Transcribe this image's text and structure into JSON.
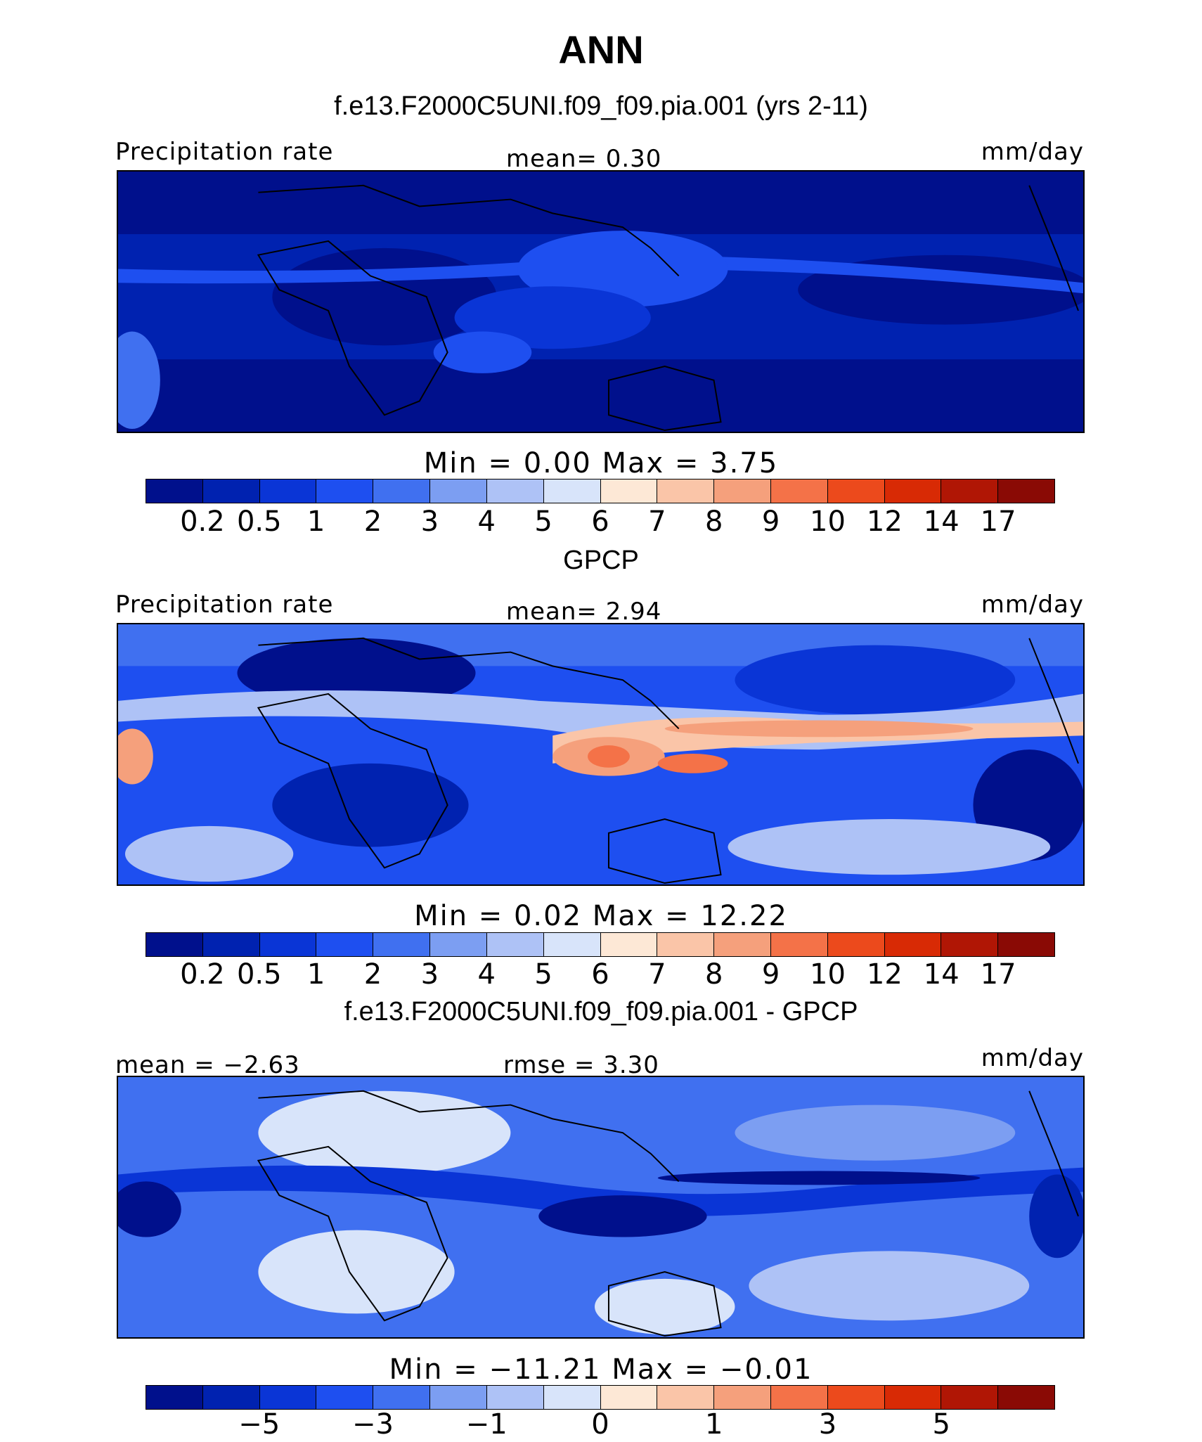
{
  "title": "ANN",
  "colors": [
    "#00108c",
    "#0022b0",
    "#0a35d6",
    "#1e4ff0",
    "#4070f0",
    "#7c9ef2",
    "#aec2f6",
    "#d8e4fa",
    "#fde8d6",
    "#fac5a8",
    "#f5a07c",
    "#f47248",
    "#ec4a1c",
    "#d82a05",
    "#b01605",
    "#8a0a05"
  ],
  "panels": [
    {
      "case_title": "f.e13.F2000C5UNI.f09_f09.pia.001 (yrs 2-11)",
      "left_label": "Precipitation rate",
      "center_label": "mean=   0.30",
      "right_label": "mm/day",
      "minmax": "Min =    0.00  Max =    3.75",
      "ticks": [
        "0.2",
        "0.5",
        "1",
        "2",
        "3",
        "4",
        "5",
        "6",
        "7",
        "8",
        "9",
        "10",
        "12",
        "14",
        "17"
      ],
      "field": "model"
    },
    {
      "case_title": "GPCP",
      "left_label": "Precipitation rate",
      "center_label": "mean=   2.94",
      "right_label": "mm/day",
      "minmax": "Min =    0.02  Max =   12.22",
      "ticks": [
        "0.2",
        "0.5",
        "1",
        "2",
        "3",
        "4",
        "5",
        "6",
        "7",
        "8",
        "9",
        "10",
        "12",
        "14",
        "17"
      ],
      "field": "obs"
    },
    {
      "case_title": "f.e13.F2000C5UNI.f09_f09.pia.001 - GPCP",
      "left_label": "mean =  −2.63",
      "center_label": "rmse =   3.30",
      "right_label": "mm/day",
      "minmax": "Min = −11.21  Max =  −0.01",
      "ticks": [
        "−5",
        "−3",
        "−1",
        "0",
        "1",
        "3",
        "5"
      ],
      "field": "diff"
    }
  ]
}
